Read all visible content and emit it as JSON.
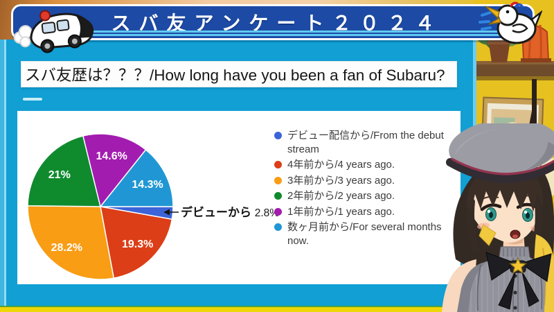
{
  "banner": {
    "title": "スバ友アンケート２０２４",
    "left_icon": "police-car-icon",
    "right_icon": "duck-icon",
    "bg_color": "#1c4aa5",
    "stripe_color": "#5fc9f1"
  },
  "slide": {
    "question_title": "スバ友歴は？？？/How long have you been a fan of Subaru?",
    "bg_color": "#119fd4"
  },
  "chart_data": {
    "type": "pie",
    "title": "スバ友歴は？？？/How long have you been a fan of Subaru?",
    "labels": [
      "デビュー配信から/From the debut stream",
      "4年前から/4 years ago.",
      "3年前から/3 years ago.",
      "2年前から/2 years ago.",
      "1年前から/1 years ago.",
      "数ヶ月前から/For several months now."
    ],
    "values": [
      2.8,
      19.3,
      28.2,
      21,
      14.6,
      14.3
    ],
    "value_labels": [
      "2.8%",
      "19.3%",
      "28.2%",
      "21%",
      "14.6%",
      "14.3%"
    ],
    "colors": [
      "#3c64d8",
      "#dc3e17",
      "#f99d15",
      "#0f8b2e",
      "#a31cb0",
      "#2097d4"
    ],
    "start_angle_deg": 0,
    "direction": "clockwise",
    "legend_position": "right",
    "annotation": {
      "label": "デビューから",
      "value": "2.8%",
      "slice_index": 0
    }
  }
}
